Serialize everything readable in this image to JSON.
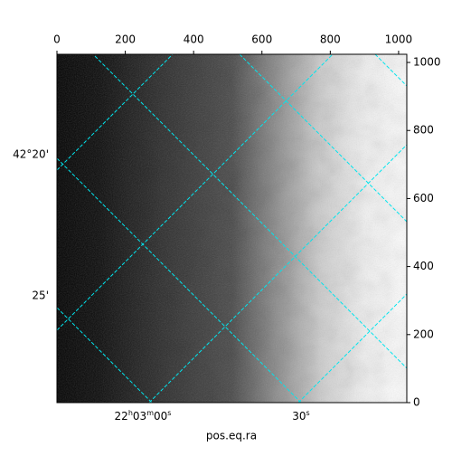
{
  "chart_data": {
    "type": "image",
    "xlabel": "pos.eq.ra",
    "xlim": [
      0,
      1024
    ],
    "ylim": [
      0,
      1024
    ],
    "xticks": [
      0,
      200,
      400,
      600,
      800,
      1000
    ],
    "yticks": [
      0,
      200,
      400,
      600,
      800,
      1000
    ],
    "ra_labels": [
      [
        "22",
        "h",
        "03",
        "m",
        "00",
        "s"
      ],
      [
        "30",
        "s"
      ]
    ],
    "dec_labels": [
      "42°20'",
      "25'"
    ]
  }
}
